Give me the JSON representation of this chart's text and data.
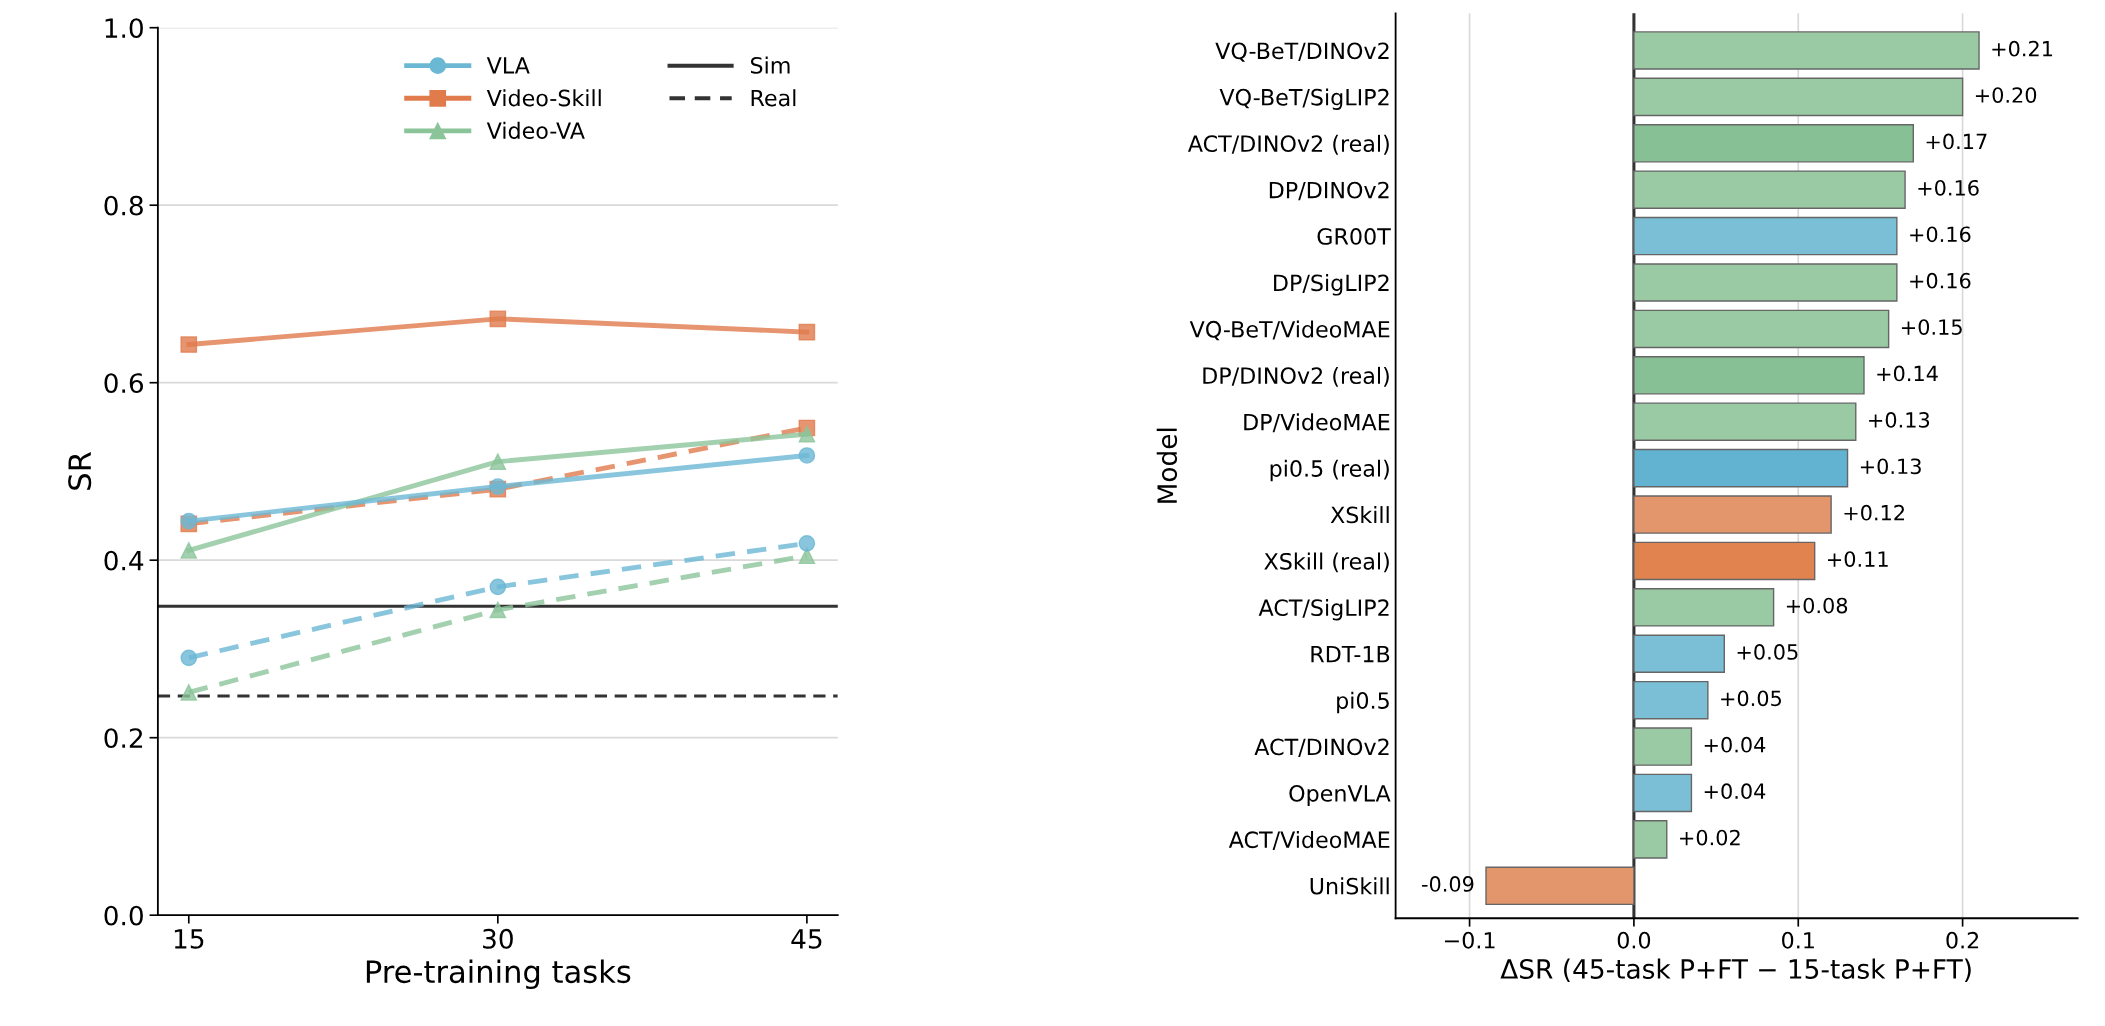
{
  "chart_data": [
    {
      "type": "line",
      "xlabel": "Pre-training tasks",
      "ylabel": "SR",
      "x": [
        15,
        30,
        45
      ],
      "xlim": [
        13.5,
        46.5
      ],
      "xticks": [
        15,
        30,
        45
      ],
      "ylim": [
        0,
        1.0
      ],
      "yticks": [
        {
          "value": 0,
          "label": "0.0"
        },
        0.2,
        0.4,
        0.6,
        0.8,
        {
          "value": 1.0,
          "label": "1.0"
        }
      ],
      "grid": "y",
      "legend": "top right",
      "series": [
        {
          "name": "VLA",
          "color": "#6bb8d4",
          "marker": "circle",
          "line_style": "solid",
          "values": [
            0.444,
            0.483,
            0.518
          ]
        },
        {
          "name": "Video-Skill",
          "color": "#e07b4c",
          "marker": "square",
          "line_style": "solid",
          "values": [
            0.643,
            0.672,
            0.657
          ]
        },
        {
          "name": "Video-VA",
          "color": "#8cc49a",
          "marker": "triangle",
          "line_style": "solid",
          "values": [
            0.411,
            0.511,
            0.542
          ]
        },
        {
          "color": "#6bb8d4",
          "marker": "circle",
          "line_style": "dashed",
          "values": [
            0.29,
            0.37,
            0.419
          ]
        },
        {
          "color": "#e07b4c",
          "marker": "square",
          "line_style": "dashed",
          "values": [
            0.441,
            0.48,
            0.549
          ]
        },
        {
          "color": "#8cc49a",
          "marker": "triangle",
          "line_style": "dashed",
          "values": [
            0.251,
            0.344,
            0.405
          ]
        }
      ],
      "ref_lines": [
        {
          "axis": "y",
          "value": 0.348,
          "label": "Sim",
          "color": "#333333",
          "line_style": "solid"
        },
        {
          "axis": "y",
          "value": 0.247,
          "label": "Real",
          "color": "#333333",
          "line_style": "dashed"
        }
      ]
    },
    {
      "type": "bar",
      "orientation": "horizontal",
      "xlabel": "ΔSR (45-task P+FT − 15-task P+FT)",
      "ylabel": "Model",
      "categories": [
        "VQ-BeT/DINOv2",
        "VQ-BeT/SigLIP2",
        "ACT/DINOv2 (real)",
        "DP/DINOv2",
        "GR00T",
        "DP/SigLIP2",
        "VQ-BeT/VideoMAE",
        "DP/DINOv2 (real)",
        "DP/VideoMAE",
        "pi0.5 (real)",
        "XSkill",
        "XSkill (real)",
        "ACT/SigLIP2",
        "RDT-1B",
        "pi0.5",
        "ACT/DINOv2",
        "OpenVLA",
        "ACT/VideoMAE",
        "UniSkill"
      ],
      "values": [
        0.21,
        0.2,
        0.17,
        0.165,
        0.16,
        0.16,
        0.155,
        0.14,
        0.135,
        0.13,
        0.12,
        0.11,
        0.085,
        0.055,
        0.045,
        0.035,
        0.035,
        0.02,
        -0.09
      ],
      "value_labels": [
        "+0.21",
        "+0.20",
        "+0.17",
        "+0.16",
        "+0.16",
        "+0.16",
        "+0.15",
        "+0.14",
        "+0.13",
        "+0.13",
        "+0.12",
        "+0.11",
        "+0.08",
        "+0.05",
        "+0.05",
        "+0.04",
        "+0.04",
        "+0.02",
        "-0.09"
      ],
      "colors": [
        "#9acaa3",
        "#9acaa3",
        "#88c095",
        "#9acaa3",
        "#7bbfd6",
        "#9acaa3",
        "#9acaa3",
        "#88c095",
        "#9acaa3",
        "#62b3d2",
        "#e3956b",
        "#e0834e",
        "#9acaa3",
        "#7bbfd6",
        "#7bbfd6",
        "#9acaa3",
        "#7bbfd6",
        "#9acaa3",
        "#e3956b"
      ],
      "xlim": [
        -0.145,
        0.27
      ],
      "xticks": [
        {
          "value": -0.1,
          "label": "−0.1"
        },
        {
          "value": 0.0,
          "label": "0.0"
        },
        0.1,
        0.2
      ],
      "grid": "x",
      "ref_lines": [
        {
          "axis": "x",
          "value": 0.0,
          "color": "#333333",
          "line_style": "solid"
        }
      ]
    }
  ]
}
